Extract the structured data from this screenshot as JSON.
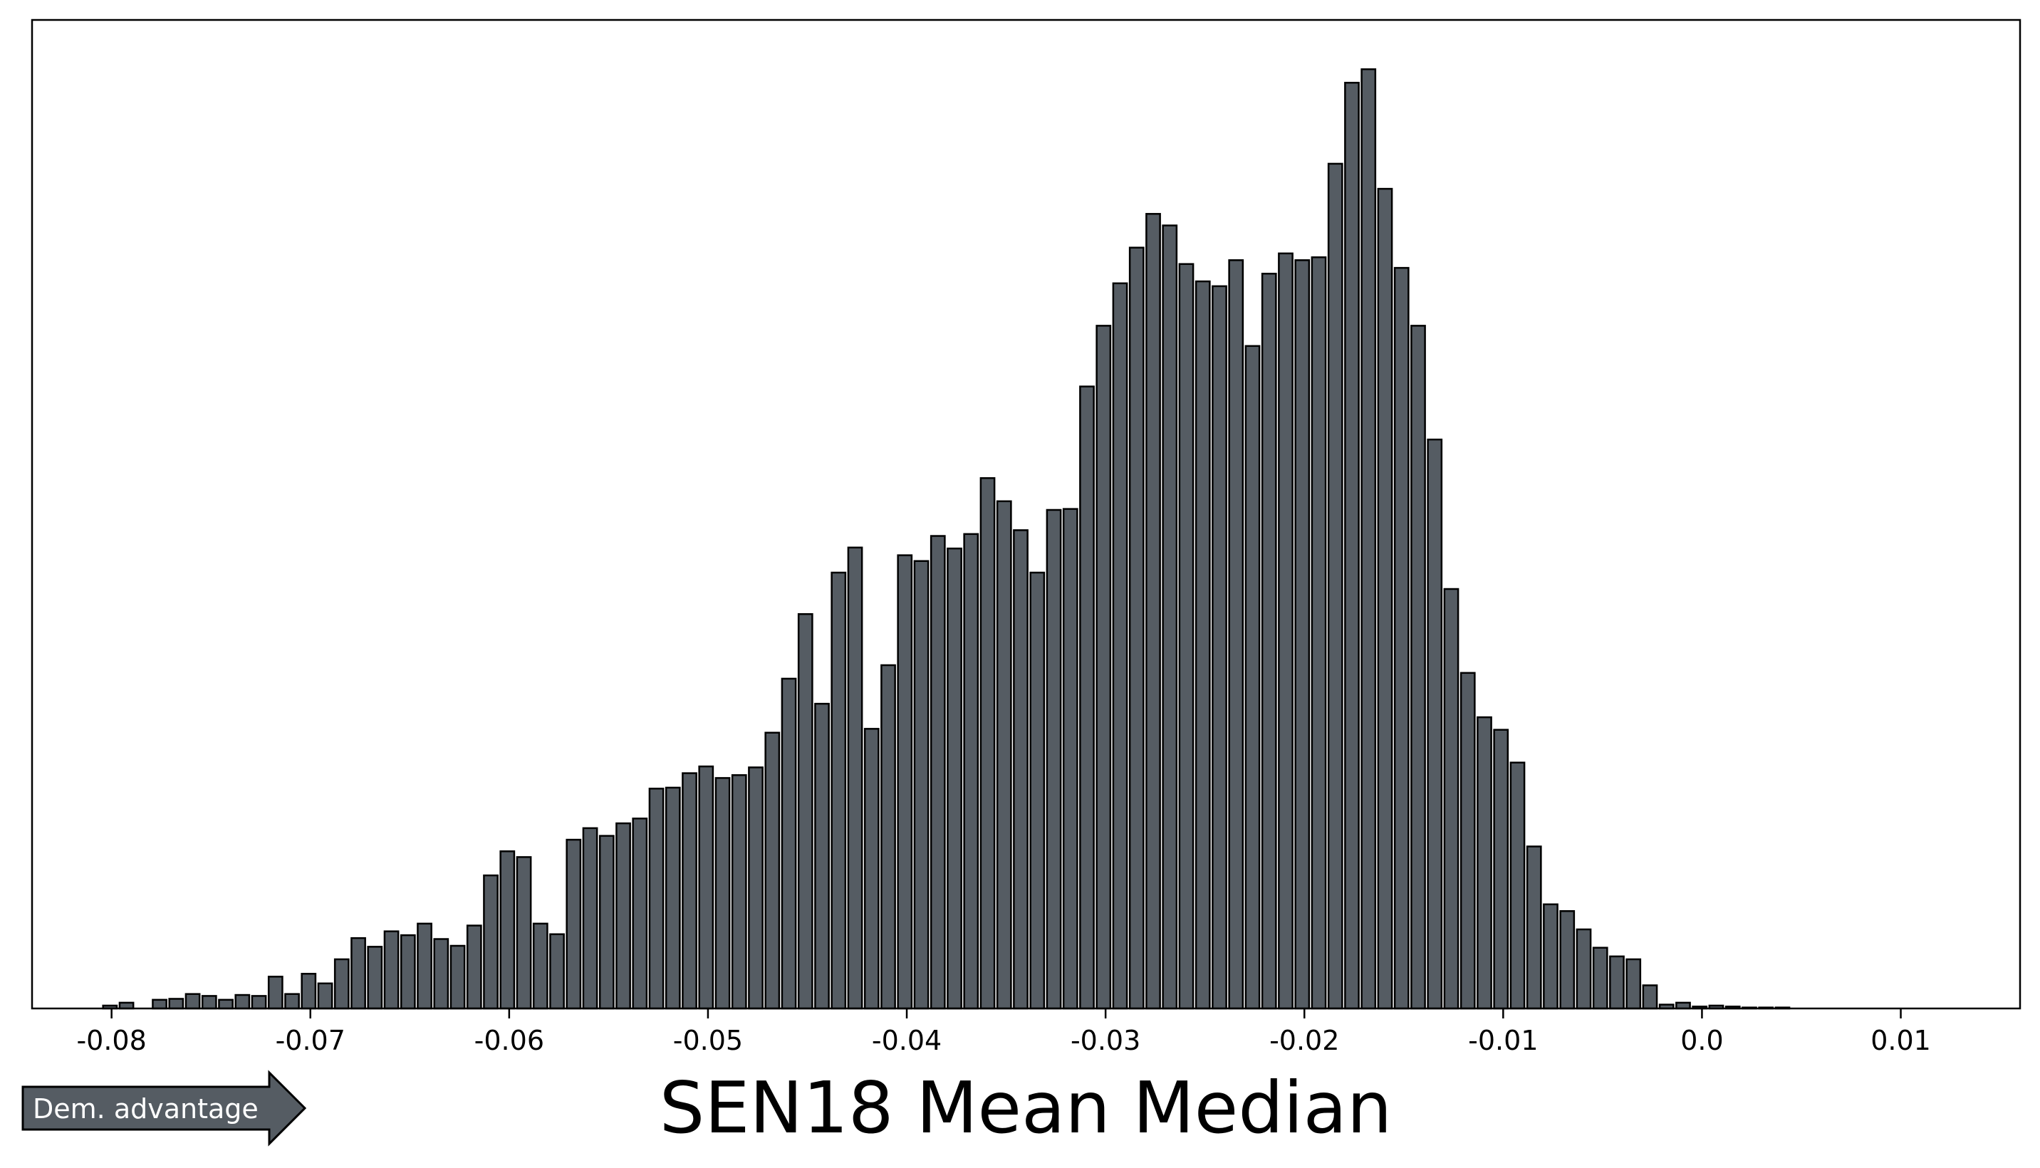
{
  "chart_data": {
    "type": "bar",
    "title": "",
    "xlabel": "SEN18 Mean Median",
    "ylabel": "",
    "annotation": "Dem. advantage",
    "bar_color": "#555c63",
    "edge_color": "#000000",
    "grid": false,
    "y_ticks_shown": false,
    "xlim": [
      -0.084,
      0.016
    ],
    "ylim": [
      0,
      1
    ],
    "x_ticks": [
      -0.08,
      -0.07,
      -0.06,
      -0.05,
      -0.04,
      -0.03,
      -0.02,
      -0.01,
      0.0,
      0.01
    ],
    "x_tick_labels": [
      "-0.08",
      "-0.07",
      "-0.06",
      "-0.05",
      "-0.04",
      "-0.03",
      "-0.02",
      "-0.01",
      "0.0",
      "0.01"
    ],
    "bin_start": -0.0805,
    "bin_width": 0.000833,
    "values": [
      0.003,
      0.006,
      0.0,
      0.009,
      0.01,
      0.015,
      0.013,
      0.009,
      0.014,
      0.013,
      0.033,
      0.015,
      0.036,
      0.026,
      0.051,
      0.073,
      0.064,
      0.08,
      0.076,
      0.088,
      0.072,
      0.065,
      0.086,
      0.138,
      0.163,
      0.157,
      0.088,
      0.077,
      0.175,
      0.187,
      0.179,
      0.192,
      0.197,
      0.228,
      0.229,
      0.244,
      0.251,
      0.239,
      0.242,
      0.25,
      0.286,
      0.342,
      0.409,
      0.316,
      0.452,
      0.478,
      0.29,
      0.356,
      0.47,
      0.464,
      0.49,
      0.477,
      0.492,
      0.55,
      0.526,
      0.496,
      0.452,
      0.517,
      0.518,
      0.645,
      0.708,
      0.752,
      0.789,
      0.824,
      0.812,
      0.772,
      0.754,
      0.749,
      0.776,
      0.687,
      0.762,
      0.783,
      0.776,
      0.779,
      0.876,
      0.96,
      0.974,
      0.85,
      0.768,
      0.708,
      0.59,
      0.435,
      0.348,
      0.302,
      0.289,
      0.255,
      0.168,
      0.108,
      0.101,
      0.082,
      0.063,
      0.054,
      0.051,
      0.024,
      0.004,
      0.006,
      0.002,
      0.003,
      0.002,
      0.001,
      0.001,
      0.001
    ]
  }
}
